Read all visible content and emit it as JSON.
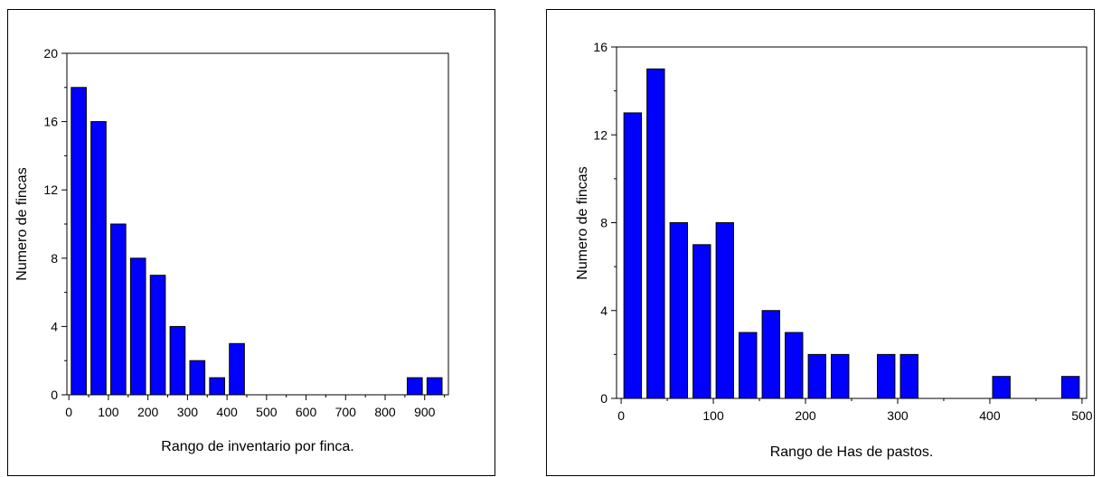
{
  "chart_data": [
    {
      "type": "bar",
      "xlabel": "Rango de inventario por finca.",
      "ylabel": "Numero de fincas",
      "x": [
        25,
        75,
        125,
        175,
        225,
        275,
        325,
        375,
        425,
        875,
        925
      ],
      "values": [
        18,
        16,
        10,
        8,
        7,
        4,
        2,
        1,
        3,
        1,
        1
      ],
      "bin_width": 50,
      "xlim": [
        -5,
        960
      ],
      "ylim": [
        0,
        20
      ],
      "x_ticks": [
        0,
        100,
        200,
        300,
        400,
        500,
        600,
        700,
        800,
        900
      ],
      "x_minor_ticks": [
        50,
        150,
        250,
        350,
        450,
        550,
        650,
        750,
        850,
        950
      ],
      "y_ticks": [
        0,
        4,
        8,
        12,
        16,
        20
      ],
      "bar_color": "#0000ff",
      "grid": false
    },
    {
      "type": "bar",
      "xlabel": "Rango de Has de pastos.",
      "ylabel": "Numero de fincas",
      "x": [
        12.5,
        37.5,
        62.5,
        87.5,
        112.5,
        137.5,
        162.5,
        187.5,
        212.5,
        237.5,
        287.5,
        312.5,
        412.5,
        487.5
      ],
      "values": [
        13,
        15,
        8,
        7,
        8,
        3,
        4,
        3,
        2,
        2,
        2,
        2,
        1,
        1
      ],
      "bin_width": 25,
      "xlim": [
        -5,
        505
      ],
      "ylim": [
        0,
        16
      ],
      "x_ticks": [
        0,
        100,
        200,
        300,
        400,
        500
      ],
      "x_minor_ticks": [
        50,
        150,
        250,
        350,
        450
      ],
      "y_ticks": [
        0,
        4,
        8,
        12,
        16
      ],
      "bar_color": "#0000ff",
      "grid": false
    }
  ]
}
